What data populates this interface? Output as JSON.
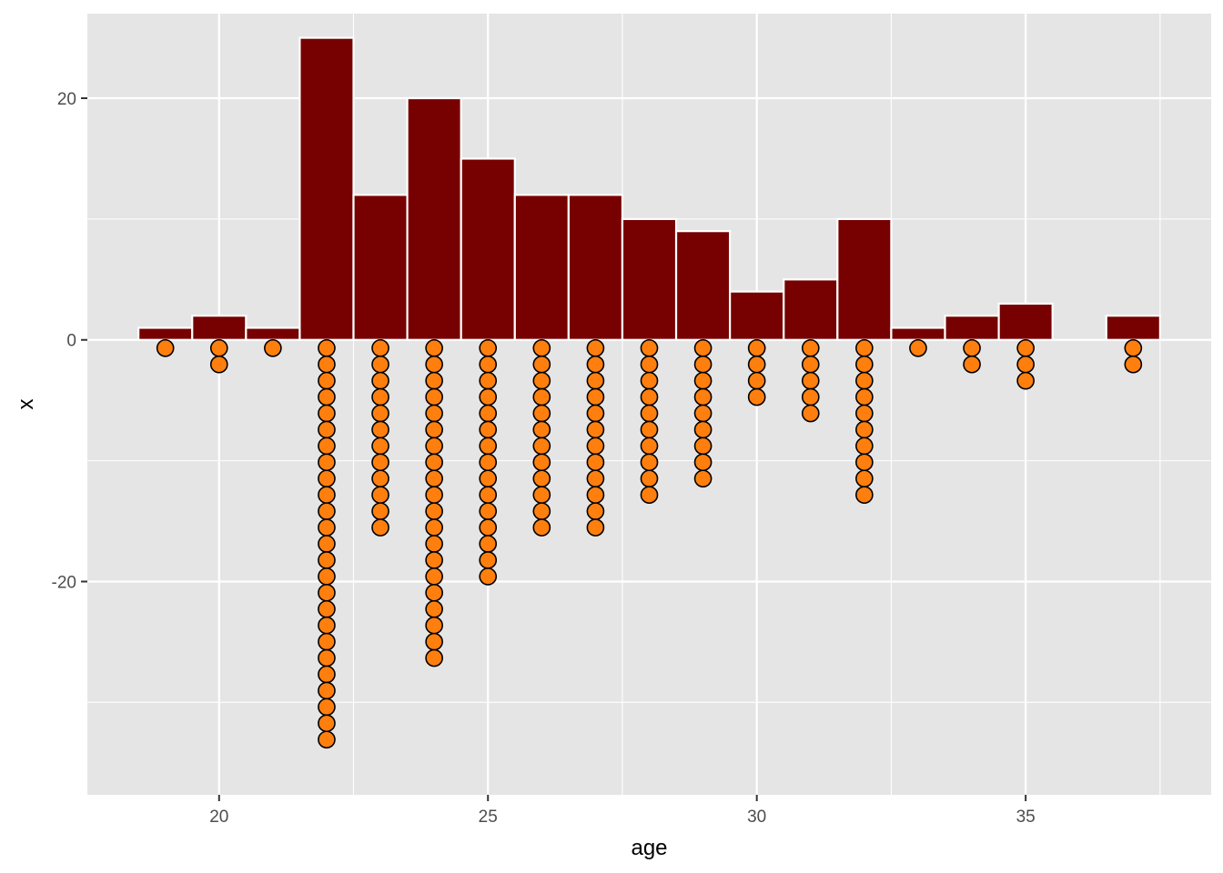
{
  "chart_data": {
    "type": "bar",
    "xlabel": "age",
    "ylabel": "x",
    "xlim": [
      17.55,
      38.45
    ],
    "ylim": [
      -37.65,
      27.0
    ],
    "x_ticks_major": [
      20,
      25,
      30,
      35
    ],
    "x_ticks_minor": [
      22.5,
      27.5,
      32.5,
      37.5
    ],
    "y_ticks_major": [
      -20,
      0,
      20
    ],
    "y_ticks_minor": [
      -30,
      -10,
      10
    ],
    "grid": true,
    "bars": {
      "x": [
        19,
        20,
        21,
        22,
        23,
        24,
        25,
        26,
        27,
        28,
        29,
        30,
        31,
        32,
        33,
        34,
        35,
        36,
        37
      ],
      "values": [
        1,
        2,
        1,
        25,
        12,
        20,
        15,
        12,
        12,
        10,
        9,
        4,
        5,
        10,
        1,
        2,
        3,
        0,
        2
      ],
      "width": 1,
      "fill": "#770000",
      "outline": "#ffffff"
    },
    "dots": {
      "x": [
        19,
        20,
        21,
        22,
        23,
        24,
        25,
        26,
        27,
        28,
        29,
        30,
        31,
        32,
        33,
        34,
        35,
        37
      ],
      "counts": [
        1,
        2,
        1,
        25,
        12,
        20,
        15,
        12,
        12,
        10,
        9,
        4,
        5,
        10,
        1,
        2,
        3,
        2
      ],
      "fill": "#ff7f0e",
      "outline": "#000000"
    },
    "colors": {
      "panel_background": "#e5e5e5",
      "grid": "#ffffff",
      "tick_text": "#4d4d4d",
      "tick_mark": "#333333"
    }
  }
}
